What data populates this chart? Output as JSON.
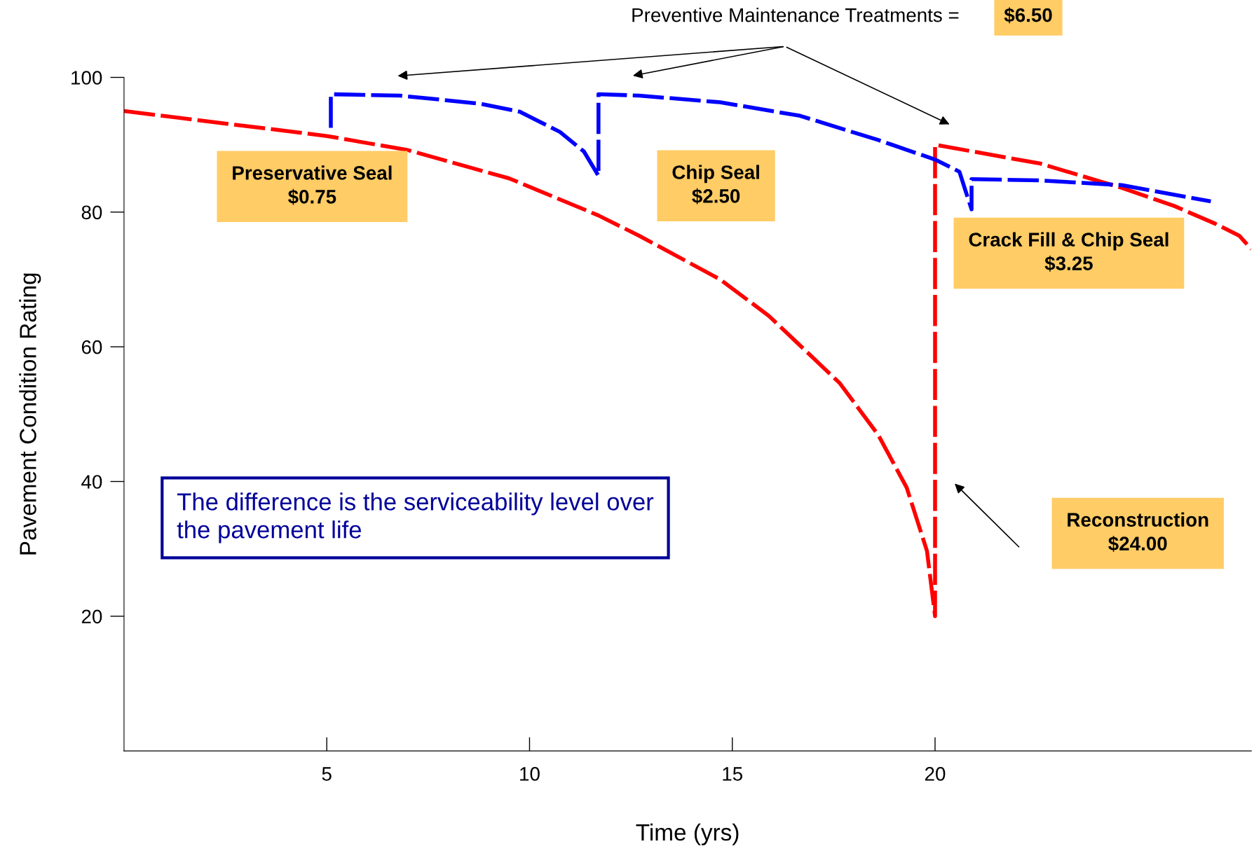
{
  "chart_data": {
    "type": "line",
    "xlabel": "Time (yrs)",
    "ylabel": "Pavement Condition Rating",
    "xlim": [
      0,
      27.8
    ],
    "xticks": [
      5,
      10,
      15,
      20
    ],
    "ylim": [
      0,
      100
    ],
    "yticks": [
      20,
      40,
      60,
      80,
      100
    ],
    "grid": false,
    "marker": "none",
    "series": [
      {
        "color": "#ff0000",
        "line_style": "dashed",
        "x": [
          0,
          5,
          7,
          9.5,
          11.7,
          12.7,
          14.7,
          15.9,
          17.65,
          18.6,
          19.3,
          19.8,
          20,
          20,
          22.6,
          24.6,
          25.9,
          26.9,
          27.5,
          27.8
        ],
        "values": [
          95,
          91.3,
          89.2,
          85,
          79.5,
          76.5,
          70,
          64.6,
          54.6,
          46.9,
          39.1,
          29.7,
          20,
          90,
          87.2,
          83.6,
          80.9,
          78.3,
          76.5,
          74.5
        ]
      },
      {
        "color": "#0000ff",
        "line_style": "dashed",
        "x": [
          5.1,
          5.1,
          6.8,
          8.78,
          9.76,
          10.75,
          11.34,
          11.7,
          11.7,
          12.7,
          14.7,
          16.67,
          18.6,
          20,
          20.6,
          20.9,
          20.9,
          22.6,
          24.6,
          26.8
        ],
        "values": [
          92.5,
          97.5,
          97.3,
          96.1,
          94.9,
          91.9,
          89,
          85.4,
          97.5,
          97.3,
          96.3,
          94.3,
          90.7,
          87.8,
          86,
          80.4,
          84.9,
          84.7,
          84,
          81.6
        ]
      }
    ],
    "annotations": [
      "Preventive Maintenance Treatments =",
      "$6.50",
      "The difference is the serviceability level over\nthe pavement life",
      "Preservative Seal\n$0.75",
      "Chip Seal\n$2.50",
      "Crack Fill & Chip Seal\n$3.25",
      "Reconstruction\n$24.00"
    ]
  }
}
